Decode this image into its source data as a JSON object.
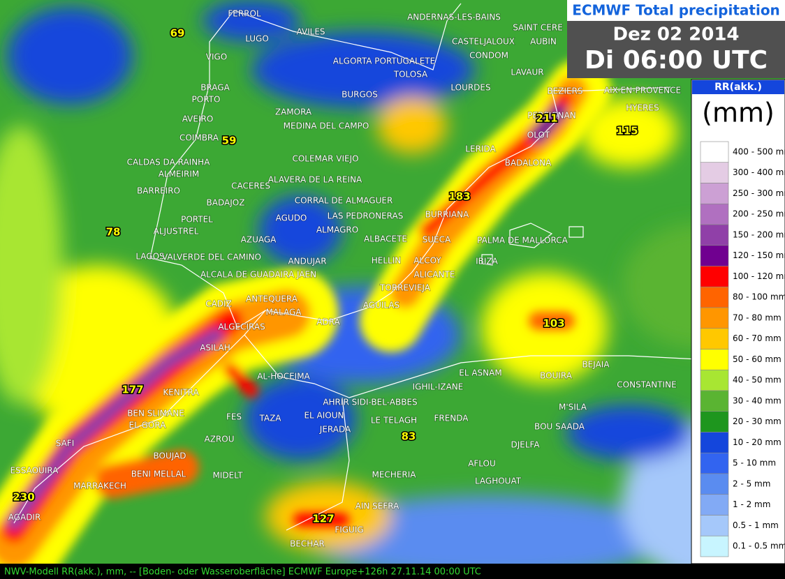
{
  "header": {
    "title": "ECMWF Total precipitation",
    "date": "Dez 02 2014",
    "time": "Di 06:00 UTC"
  },
  "legend": {
    "title": "RR(akk.)",
    "unit": "(mm)",
    "entries": [
      {
        "label": "400 - 500 mm",
        "color": "#ffffff"
      },
      {
        "label": "300 - 400 mm",
        "color": "#e4cce4"
      },
      {
        "label": "250 - 300 mm",
        "color": "#cca0d4"
      },
      {
        "label": "200 - 250 mm",
        "color": "#b070c0"
      },
      {
        "label": "150 - 200 mm",
        "color": "#9040a8"
      },
      {
        "label": "120 - 150 mm",
        "color": "#700090"
      },
      {
        "label": "100 - 120 mm",
        "color": "#ff0000"
      },
      {
        "label": "80 - 100 mm",
        "color": "#ff6400"
      },
      {
        "label": "70 - 80 mm",
        "color": "#ff9600"
      },
      {
        "label": "60 - 70 mm",
        "color": "#ffc800"
      },
      {
        "label": "50 - 60 mm",
        "color": "#ffff00"
      },
      {
        "label": "40 - 50 mm",
        "color": "#a8e632"
      },
      {
        "label": "30 - 40 mm",
        "color": "#5ab432"
      },
      {
        "label": "20 - 30 mm",
        "color": "#1e961e"
      },
      {
        "label": "10 - 20 mm",
        "color": "#1446dc"
      },
      {
        "label": "5 - 10 mm",
        "color": "#3264f0"
      },
      {
        "label": "2 - 5 mm",
        "color": "#5a8cf0"
      },
      {
        "label": "1 - 2 mm",
        "color": "#82aaf5"
      },
      {
        "label": "0.5 - 1 mm",
        "color": "#a5c8fa"
      },
      {
        "label": "0.1 - 0.5 mm",
        "color": "#c8f5ff"
      }
    ]
  },
  "cities": [
    "FERROL",
    "LUGO",
    "AVILES",
    "ANDERNAS-LES-BAINS",
    "SAINT CERE",
    "CASTELJALOUX",
    "AUBIN",
    "CONDOM",
    "ALGORTA PORTUGALETE",
    "TOLOSA",
    "LAVAUR",
    "VIGO",
    "BRAGA",
    "PORTO",
    "LOURDES",
    "BURGOS",
    "BEZIERS",
    "AIX-EN-PROVENCE",
    "ZAMORA",
    "PERPIGNAN",
    "HYERES",
    "AVEIRO",
    "MEDINA DEL CAMPO",
    "OLOT",
    "LERIDA",
    "COIMBRA",
    "CALDAS DA RAINHA",
    "COLEMAR VIEJO",
    "BADALONA",
    "ALMEIRIM",
    "ALAVERA DE LA REINA",
    "CACERES",
    "BARREIRO",
    "CORRAL DE ALMAGUER",
    "BADAJOZ",
    "BURRIANA",
    "LAS PEDRONERAS",
    "AGUDO",
    "PORTEL",
    "ALJUSTREL",
    "ALMAGRO",
    "ALBACETE",
    "SUECA",
    "PALMA DE MALLORCA",
    "AZUAGA",
    "LAGOS",
    "VALVERDE DEL CAMINO",
    "ANDUJAR",
    "HELLIN",
    "ALCOY",
    "IBIZA",
    "ALCALA DE GUADAIRA JAEN",
    "ALICANTE",
    "TORREVIEJA",
    "ANTEQUERA",
    "CADIZ",
    "AGUILAS",
    "MALAGA",
    "ADRA",
    "ALGECIRAS",
    "ASILAH",
    "BEJAIA",
    "AL-HOCEIMA",
    "EL ASNAM",
    "BOUIRA",
    "IGHIL-IZANE",
    "CONSTANTINE",
    "KENITRA",
    "AHRIR SIDI-BEL-ABBES",
    "M'SILA",
    "BEN SLIMANE",
    "FES",
    "TAZA",
    "EL AIOUN",
    "LE TELAGH",
    "FRENDA",
    "EL GORA",
    "BOU SAADA",
    "JERADA",
    "SAFI",
    "AZROU",
    "DJELFA",
    "BOUJAD",
    "AFLOU",
    "ESSAOUIRA",
    "BENI MELLAL",
    "MIDELT",
    "MECHERIA",
    "LAGHOUAT",
    "MARRAKECH",
    "AIN SEFRA",
    "AGADIR",
    "FIGUIG",
    "BECHAR"
  ],
  "maxima": [
    69,
    59,
    78,
    211,
    183,
    115,
    103,
    177,
    83,
    230,
    127
  ],
  "footer": "NWV-Modell  RR(akk.), mm, -- [Boden- oder Wasseroberfläche] ECMWF  Europe+126h  27.11.14 00:00 UTC"
}
